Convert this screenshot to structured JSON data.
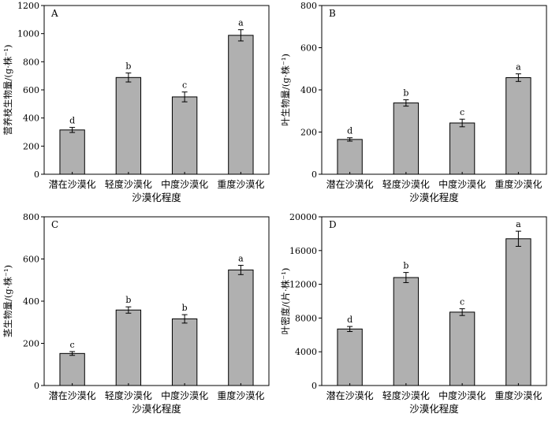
{
  "figure": {
    "bar_color": "#b0b0b0",
    "edge_color": "#000000",
    "axis_color": "#000000"
  },
  "chart_data": [
    {
      "type": "bar",
      "panel_label": "A",
      "categories": [
        "潜在沙漠化",
        "轻度沙漠化",
        "中度沙漠化",
        "重度沙漠化"
      ],
      "values": [
        315,
        688,
        550,
        988
      ],
      "errors": [
        18,
        32,
        35,
        40
      ],
      "significance": [
        "d",
        "b",
        "c",
        "a"
      ],
      "xlabel": "沙漠化程度",
      "ylabel": "营养枝生物量/(g·株⁻¹)",
      "ylim": [
        0,
        1200
      ],
      "yticks": [
        0,
        200,
        400,
        600,
        800,
        1000,
        1200
      ]
    },
    {
      "type": "bar",
      "panel_label": "B",
      "categories": [
        "潜在沙漠化",
        "轻度沙漠化",
        "中度沙漠化",
        "重度沙漠化"
      ],
      "values": [
        165,
        338,
        243,
        458
      ],
      "errors": [
        8,
        15,
        18,
        18
      ],
      "significance": [
        "d",
        "b",
        "c",
        "a"
      ],
      "xlabel": "沙漠化程度",
      "ylabel": "叶生物量/(g·株⁻¹)",
      "ylim": [
        0,
        800
      ],
      "yticks": [
        0,
        200,
        400,
        600,
        800
      ]
    },
    {
      "type": "bar",
      "panel_label": "C",
      "categories": [
        "潜在沙漠化",
        "轻度沙漠化",
        "中度沙漠化",
        "重度沙漠化"
      ],
      "values": [
        152,
        358,
        316,
        548
      ],
      "errors": [
        9,
        15,
        20,
        22
      ],
      "significance": [
        "c",
        "b",
        "b",
        "a"
      ],
      "xlabel": "沙漠化程度",
      "ylabel": "茎生物量/(g·株⁻¹)",
      "ylim": [
        0,
        800
      ],
      "yticks": [
        0,
        200,
        400,
        600,
        800
      ]
    },
    {
      "type": "bar",
      "panel_label": "D",
      "categories": [
        "潜在沙漠化",
        "轻度沙漠化",
        "中度沙漠化",
        "重度沙漠化"
      ],
      "values": [
        6700,
        12800,
        8700,
        17400
      ],
      "errors": [
        300,
        600,
        400,
        900
      ],
      "significance": [
        "d",
        "b",
        "c",
        "a"
      ],
      "xlabel": "沙漠化程度",
      "ylabel": "叶密度/(片·株⁻¹)",
      "ylim": [
        0,
        20000
      ],
      "yticks": [
        0,
        4000,
        8000,
        12000,
        16000,
        20000
      ]
    }
  ]
}
